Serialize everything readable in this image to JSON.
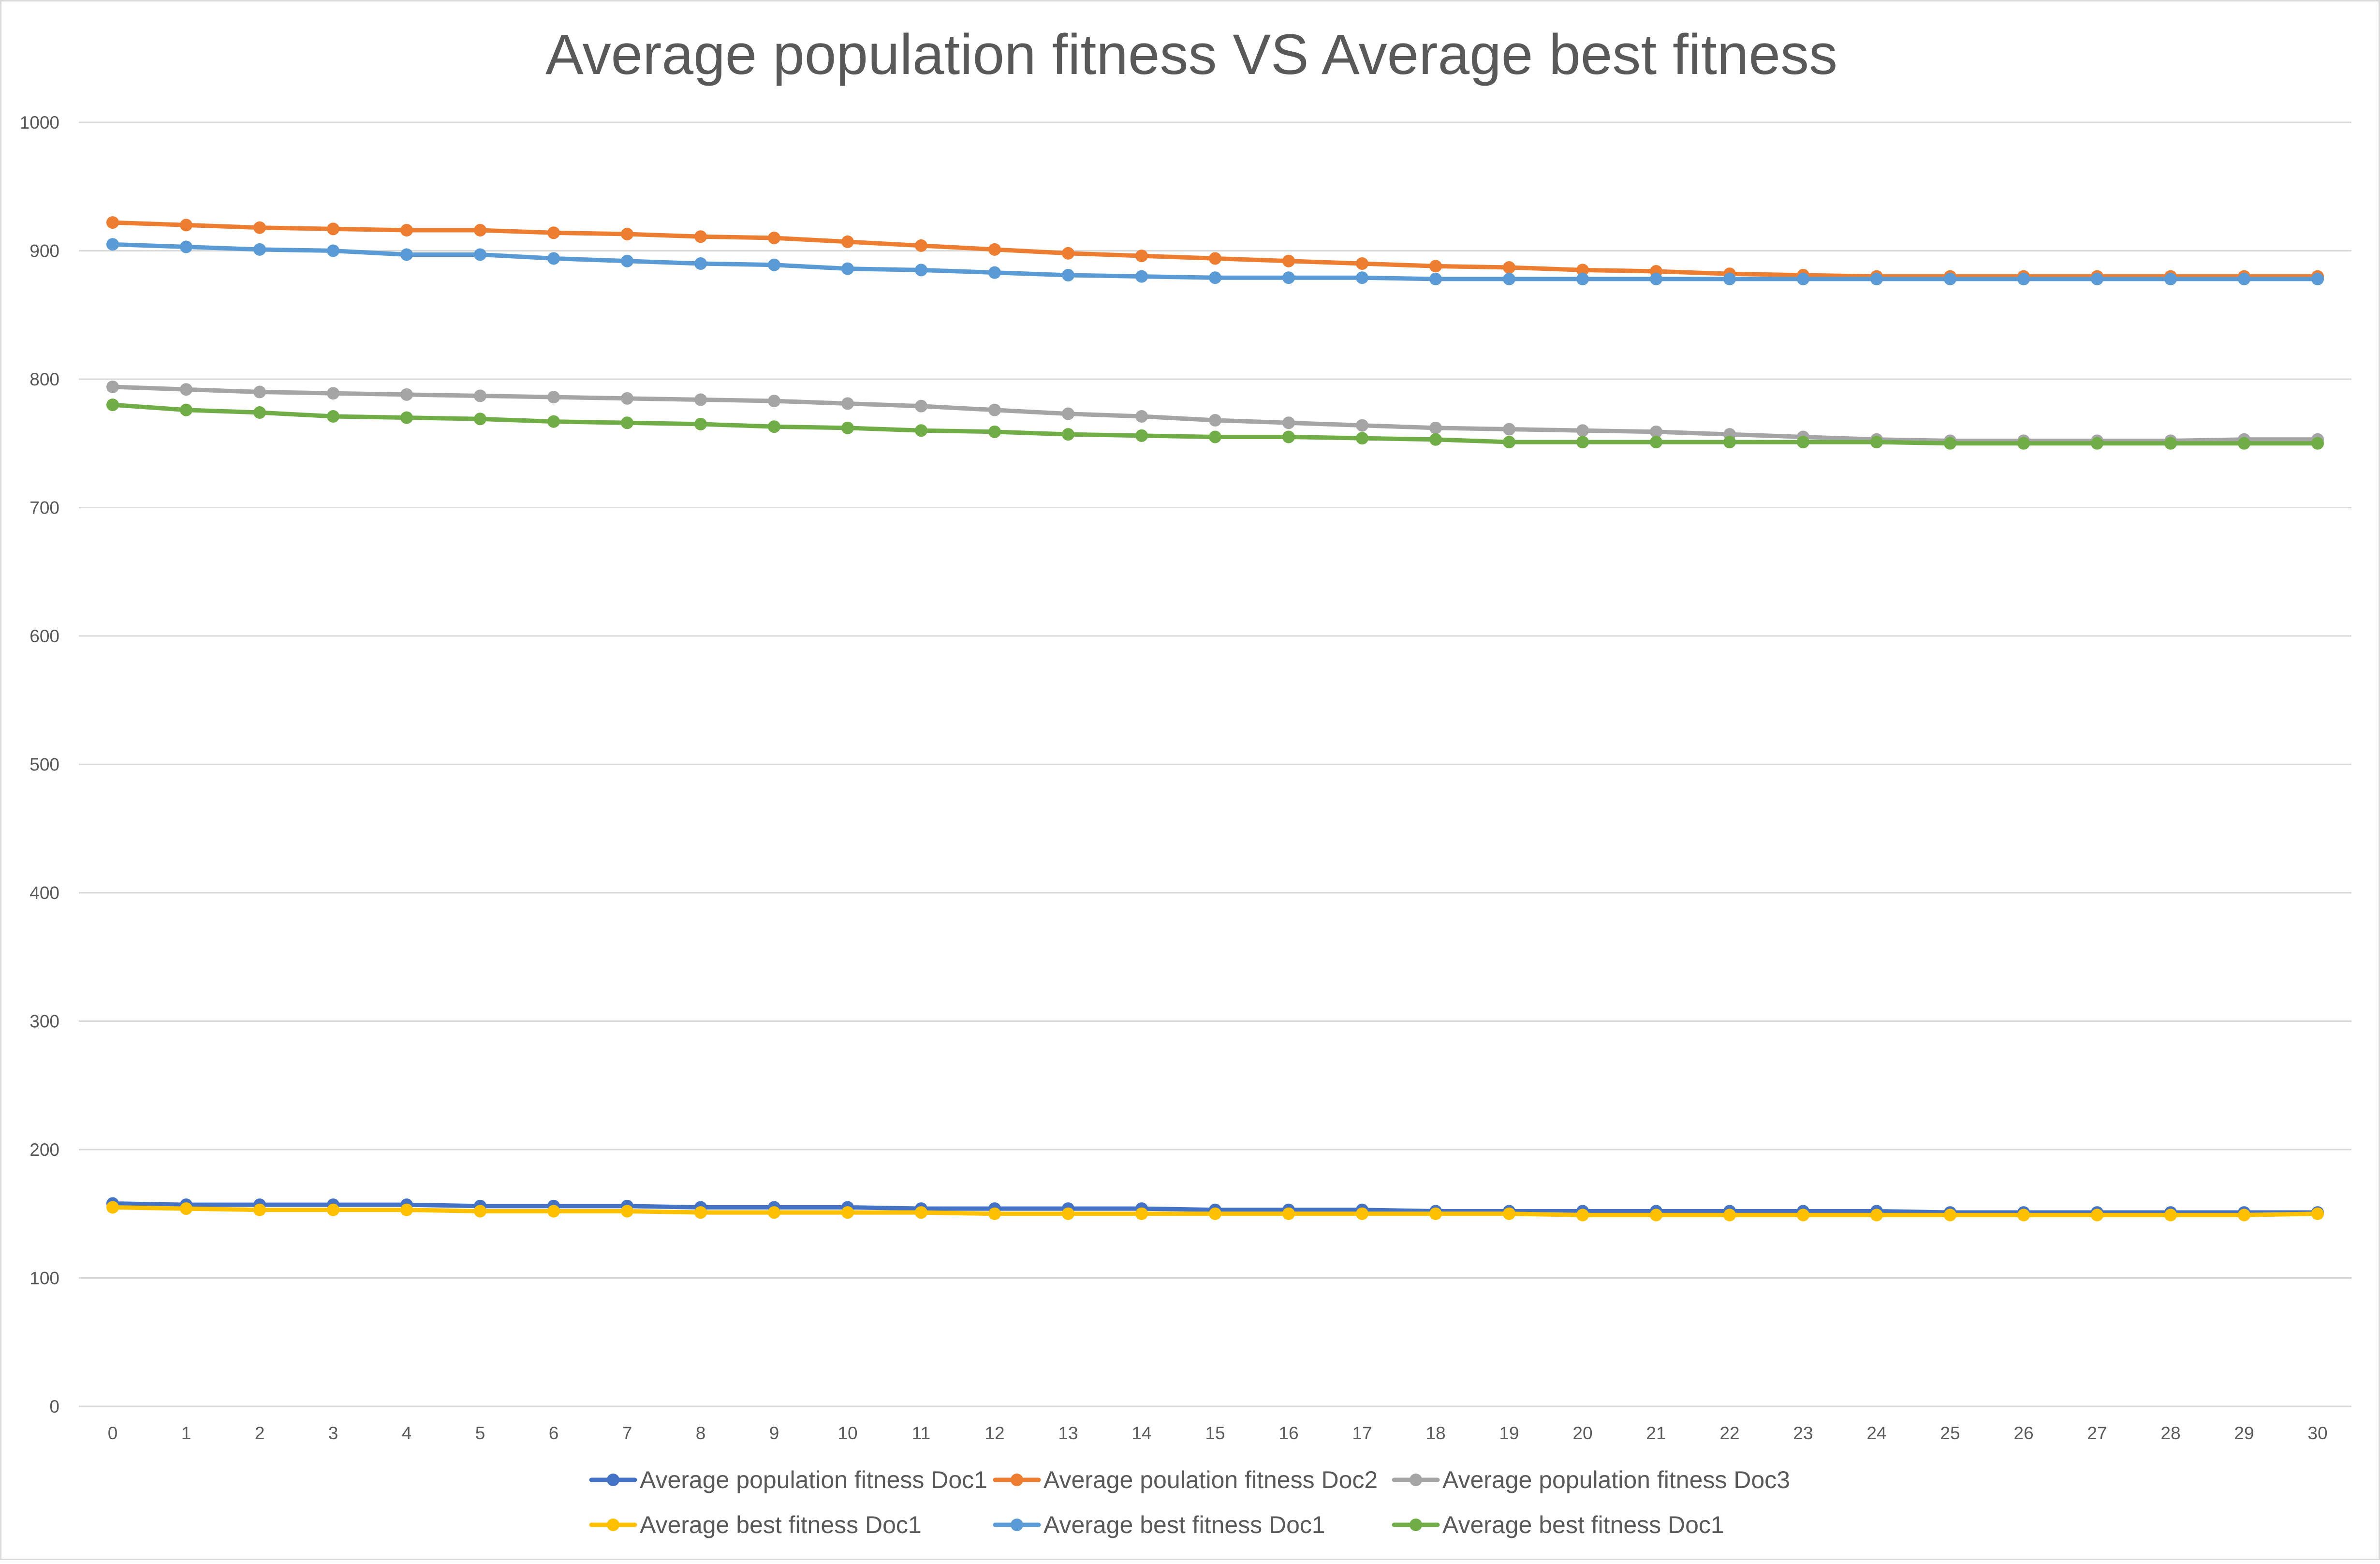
{
  "chart_data": {
    "type": "line",
    "title": "Average population fitness VS Average best fitness",
    "xlabel": "",
    "ylabel": "",
    "x": [
      0,
      1,
      2,
      3,
      4,
      5,
      6,
      7,
      8,
      9,
      10,
      11,
      12,
      13,
      14,
      15,
      16,
      17,
      18,
      19,
      20,
      21,
      22,
      23,
      24,
      25,
      26,
      27,
      28,
      29,
      30
    ],
    "ylim": [
      0,
      1000
    ],
    "y_ticks": [
      "0",
      "100",
      "200",
      "300",
      "400",
      "500",
      "600",
      "700",
      "800",
      "900",
      "1000"
    ],
    "grid": true,
    "legend_position": "bottom",
    "series": [
      {
        "name": "Average population fitness Doc1",
        "color": "#4472c4",
        "values": [
          158,
          157,
          157,
          157,
          157,
          156,
          156,
          156,
          155,
          155,
          155,
          154,
          154,
          154,
          154,
          153,
          153,
          153,
          152,
          152,
          152,
          152,
          152,
          152,
          152,
          151,
          151,
          151,
          151,
          151,
          151
        ]
      },
      {
        "name": "Average poulation fitness Doc2",
        "color": "#ed7d31",
        "values": [
          922,
          920,
          918,
          917,
          916,
          916,
          914,
          913,
          911,
          910,
          907,
          904,
          901,
          898,
          896,
          894,
          892,
          890,
          888,
          887,
          885,
          884,
          882,
          881,
          880,
          880,
          880,
          880,
          880,
          880,
          880
        ]
      },
      {
        "name": "Average population fitness Doc3",
        "color": "#a5a5a5",
        "values": [
          794,
          792,
          790,
          789,
          788,
          787,
          786,
          785,
          784,
          783,
          781,
          779,
          776,
          773,
          771,
          768,
          766,
          764,
          762,
          761,
          760,
          759,
          757,
          755,
          753,
          752,
          752,
          752,
          752,
          753,
          753
        ]
      },
      {
        "name": "Average best fitness Doc1",
        "color": "#ffc000",
        "values": [
          155,
          154,
          153,
          153,
          153,
          152,
          152,
          152,
          151,
          151,
          151,
          151,
          150,
          150,
          150,
          150,
          150,
          150,
          150,
          150,
          149,
          149,
          149,
          149,
          149,
          149,
          149,
          149,
          149,
          149,
          150
        ]
      },
      {
        "name": "Average best fitness Doc1",
        "color": "#5b9bd5",
        "values": [
          905,
          903,
          901,
          900,
          897,
          897,
          894,
          892,
          890,
          889,
          886,
          885,
          883,
          881,
          880,
          879,
          879,
          879,
          878,
          878,
          878,
          878,
          878,
          878,
          878,
          878,
          878,
          878,
          878,
          878,
          878
        ]
      },
      {
        "name": "Average best fitness Doc1",
        "color": "#70ad47",
        "values": [
          780,
          776,
          774,
          771,
          770,
          769,
          767,
          766,
          765,
          763,
          762,
          760,
          759,
          757,
          756,
          755,
          755,
          754,
          753,
          751,
          751,
          751,
          751,
          751,
          751,
          750,
          750,
          750,
          750,
          750,
          750
        ]
      }
    ]
  }
}
